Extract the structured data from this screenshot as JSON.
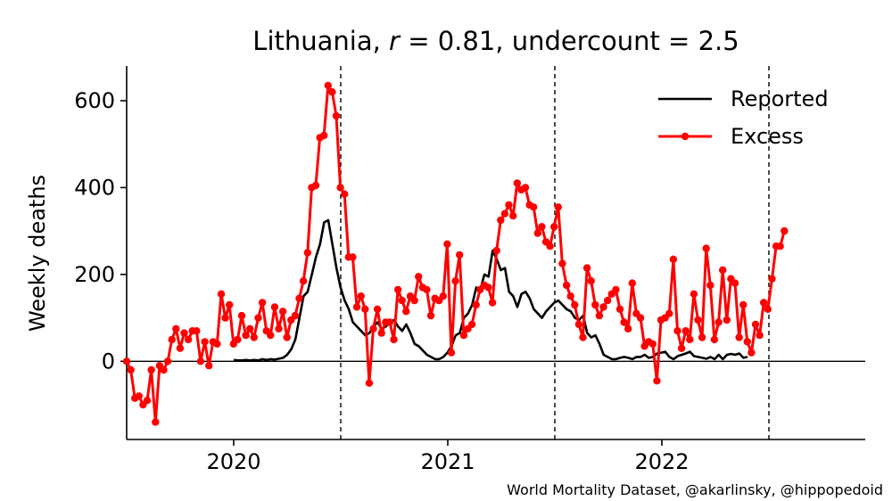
{
  "chart_data": {
    "type": "line",
    "title_prefix": "Lithuania, ",
    "title_r_symbol": "r",
    "title_r_value": " = 0.81, undercount = 2.5",
    "ylabel": "Weekly deaths",
    "xlabel": "",
    "ylim": [
      -180,
      680
    ],
    "xlim": [
      2019.5,
      2022.95
    ],
    "y_ticks": [
      0,
      200,
      400,
      600
    ],
    "x_ticks": [
      {
        "value": 2020.0,
        "label": "2020"
      },
      {
        "value": 2021.0,
        "label": "2021"
      },
      {
        "value": 2022.0,
        "label": "2022"
      }
    ],
    "vlines": [
      2020.5,
      2021.5,
      2022.5
    ],
    "hline": 0,
    "grid": false,
    "legend_position": "top-right",
    "series": [
      {
        "name": "Reported",
        "color": "#000000",
        "markers": false,
        "x_start": 2020.0,
        "x_step": 0.0192,
        "values": [
          3,
          2,
          2,
          3,
          2,
          3,
          2,
          5,
          3,
          5,
          4,
          6,
          8,
          15,
          28,
          50,
          100,
          150,
          160,
          200,
          240,
          270,
          320,
          325,
          270,
          215,
          170,
          140,
          120,
          90,
          80,
          70,
          60,
          65,
          80,
          90,
          75,
          80,
          90,
          95,
          80,
          70,
          85,
          65,
          40,
          35,
          25,
          15,
          10,
          5,
          5,
          10,
          20,
          35,
          60,
          65,
          100,
          110,
          130,
          170,
          165,
          200,
          195,
          255,
          235,
          210,
          215,
          160,
          150,
          125,
          155,
          160,
          145,
          120,
          110,
          100,
          115,
          125,
          135,
          140,
          130,
          120,
          115,
          100,
          95,
          105,
          65,
          55,
          60,
          40,
          15,
          10,
          5,
          5,
          8,
          10,
          8,
          5,
          10,
          10,
          15,
          8,
          10,
          18,
          20,
          22,
          10,
          5,
          12,
          15,
          18,
          22,
          12,
          10,
          8,
          6,
          10,
          5,
          15,
          5,
          15,
          17,
          15,
          18,
          8,
          10
        ]
      },
      {
        "name": "Excess",
        "color": "#ff0000",
        "markers": true,
        "x_start": 2019.5,
        "x_step": 0.0192,
        "values": [
          0,
          -20,
          -85,
          -80,
          -100,
          -90,
          -20,
          -140,
          -10,
          -20,
          0,
          50,
          75,
          30,
          65,
          50,
          70,
          70,
          0,
          45,
          -10,
          45,
          40,
          155,
          100,
          130,
          40,
          50,
          105,
          60,
          75,
          55,
          100,
          135,
          70,
          60,
          125,
          75,
          115,
          55,
          95,
          105,
          145,
          185,
          250,
          400,
          405,
          515,
          520,
          635,
          620,
          565,
          400,
          385,
          240,
          240,
          125,
          150,
          120,
          -50,
          75,
          120,
          65,
          90,
          90,
          50,
          165,
          140,
          115,
          150,
          140,
          195,
          170,
          165,
          105,
          145,
          140,
          150,
          270,
          20,
          185,
          245,
          60,
          75,
          85,
          130,
          165,
          175,
          170,
          135,
          255,
          325,
          340,
          360,
          335,
          410,
          395,
          400,
          360,
          355,
          295,
          310,
          275,
          265,
          310,
          355,
          225,
          175,
          150,
          130,
          85,
          55,
          215,
          185,
          130,
          105,
          125,
          140,
          155,
          165,
          120,
          90,
          75,
          180,
          110,
          100,
          35,
          45,
          40,
          -45,
          95,
          100,
          110,
          235,
          70,
          30,
          70,
          50,
          155,
          95,
          55,
          260,
          175,
          50,
          90,
          210,
          95,
          190,
          180,
          55,
          130,
          45,
          20,
          85,
          60,
          135,
          120,
          190,
          265,
          265,
          300
        ]
      }
    ],
    "credit": "World Mortality Dataset, @akarlinsky, @hippopedoid"
  }
}
